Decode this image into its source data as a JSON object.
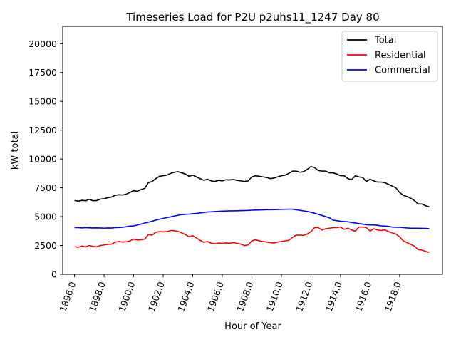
{
  "chart_data": {
    "type": "line",
    "title": "Timeseries Load for P2U p2uhs11_1247  Day 80",
    "xlabel": "Hour of Year",
    "ylabel": "kW total",
    "xlim": [
      1895.2,
      1920.9
    ],
    "ylim": [
      0,
      21500
    ],
    "xticks": [
      1896,
      1898,
      1900,
      1902,
      1904,
      1906,
      1908,
      1910,
      1912,
      1914,
      1916,
      1918
    ],
    "xtick_labels": [
      "1896.0",
      "1898.0",
      "1900.0",
      "1902.0",
      "1904.0",
      "1906.0",
      "1908.0",
      "1910.0",
      "1912.0",
      "1914.0",
      "1916.0",
      "1918.0"
    ],
    "yticks": [
      0,
      2500,
      5000,
      7500,
      10000,
      12500,
      15000,
      17500,
      20000
    ],
    "ytick_labels": [
      "0",
      "2500",
      "5000",
      "7500",
      "10000",
      "12500",
      "15000",
      "17500",
      "20000"
    ],
    "legend_position": "top-right",
    "x_start": 1896,
    "x_step": 0.25,
    "series": [
      {
        "name": "Total",
        "color": "#000000",
        "values": [
          6400,
          6350,
          6420,
          6380,
          6500,
          6380,
          6400,
          6520,
          6550,
          6650,
          6700,
          6850,
          6900,
          6880,
          6950,
          7100,
          7250,
          7200,
          7350,
          7450,
          7950,
          8050,
          8300,
          8500,
          8550,
          8600,
          8750,
          8850,
          8900,
          8800,
          8700,
          8500,
          8600,
          8450,
          8300,
          8150,
          8250,
          8100,
          8050,
          8150,
          8100,
          8200,
          8180,
          8220,
          8150,
          8100,
          8050,
          8100,
          8450,
          8550,
          8500,
          8450,
          8400,
          8300,
          8350,
          8450,
          8550,
          8600,
          8750,
          8950,
          8950,
          8850,
          8900,
          9100,
          9350,
          9250,
          9000,
          8950,
          8950,
          8800,
          8800,
          8700,
          8550,
          8550,
          8300,
          8200,
          8550,
          8450,
          8400,
          8050,
          8250,
          8100,
          8000,
          8000,
          7950,
          7800,
          7650,
          7500,
          7100,
          6850,
          6750,
          6600,
          6400,
          6100,
          6100,
          5950,
          5850
        ]
      },
      {
        "name": "Residential",
        "color": "#ff0000",
        "values": [
          2400,
          2350,
          2450,
          2380,
          2500,
          2420,
          2380,
          2500,
          2550,
          2600,
          2620,
          2780,
          2850,
          2800,
          2820,
          2900,
          3050,
          2980,
          3000,
          3050,
          3450,
          3400,
          3650,
          3700,
          3680,
          3700,
          3800,
          3780,
          3720,
          3600,
          3450,
          3250,
          3350,
          3150,
          2950,
          2780,
          2850,
          2700,
          2650,
          2720,
          2680,
          2720,
          2700,
          2750,
          2680,
          2620,
          2500,
          2550,
          2900,
          3000,
          2900,
          2850,
          2800,
          2750,
          2720,
          2800,
          2850,
          2900,
          2950,
          3200,
          3400,
          3400,
          3380,
          3500,
          3700,
          4050,
          4050,
          3850,
          3950,
          4000,
          4050,
          4050,
          4100,
          3900,
          4000,
          3850,
          3750,
          4100,
          4100,
          4050,
          3750,
          3950,
          3850,
          3800,
          3850,
          3700,
          3600,
          3500,
          3250,
          2900,
          2750,
          2600,
          2450,
          2150,
          2100,
          2000,
          1900
        ]
      },
      {
        "name": "Commercial",
        "color": "#0000ff",
        "values": [
          4050,
          4050,
          4020,
          4050,
          4030,
          4020,
          4030,
          4020,
          4000,
          4020,
          4010,
          4050,
          4060,
          4080,
          4120,
          4180,
          4200,
          4280,
          4350,
          4450,
          4520,
          4600,
          4700,
          4780,
          4850,
          4920,
          4980,
          5050,
          5120,
          5180,
          5200,
          5220,
          5250,
          5280,
          5320,
          5360,
          5400,
          5420,
          5440,
          5460,
          5480,
          5490,
          5500,
          5500,
          5510,
          5520,
          5530,
          5540,
          5560,
          5570,
          5580,
          5590,
          5600,
          5600,
          5610,
          5620,
          5630,
          5640,
          5650,
          5650,
          5600,
          5550,
          5500,
          5450,
          5380,
          5300,
          5200,
          5100,
          5000,
          4900,
          4700,
          4650,
          4600,
          4580,
          4550,
          4500,
          4450,
          4400,
          4350,
          4300,
          4280,
          4280,
          4250,
          4200,
          4180,
          4150,
          4100,
          4080,
          4080,
          4050,
          4020,
          4000,
          4000,
          4000,
          3990,
          3980,
          3970
        ]
      }
    ]
  }
}
